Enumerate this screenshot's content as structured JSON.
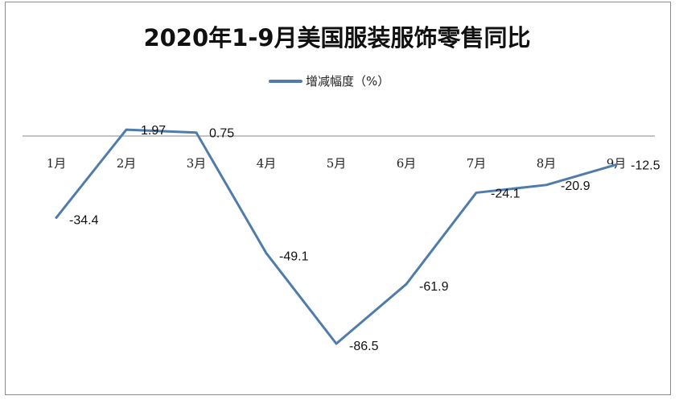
{
  "chart_data": {
    "type": "line",
    "title": "2020年1-9月美国服装服饰零售同比",
    "categories": [
      "1月",
      "2月",
      "3月",
      "4月",
      "5月",
      "6月",
      "7月",
      "8月",
      "9月"
    ],
    "series": [
      {
        "name": "增减幅度（%）",
        "values": [
          -34.4,
          1.97,
          0.75,
          -49.1,
          -86.5,
          -61.9,
          -24.1,
          -20.9,
          -12.5
        ],
        "color": "#4f7cac"
      }
    ],
    "labels": [
      "-34.4",
      "1.97",
      "0.75",
      "-49.1",
      "-86.5",
      "-61.9",
      "-24.1",
      "-20.9",
      "-12.5"
    ],
    "legend_position": "top",
    "ylim": [
      -90,
      5
    ],
    "grid": false
  }
}
